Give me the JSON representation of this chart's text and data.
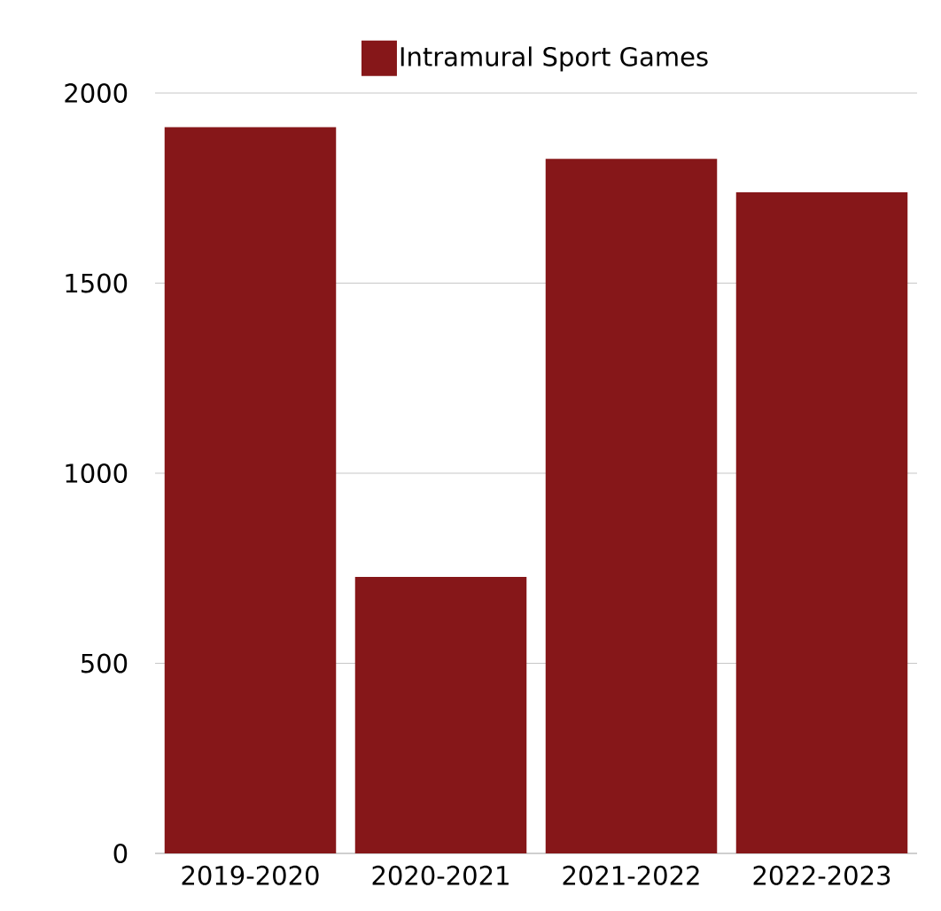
{
  "chart_data": {
    "type": "bar",
    "categories": [
      "2019-2020",
      "2020-2021",
      "2021-2022",
      "2022-2023"
    ],
    "series": [
      {
        "name": "Intramural Sport Games",
        "color": "#861719",
        "values": [
          1910,
          727,
          1827,
          1739
        ]
      }
    ],
    "ylim": [
      0,
      2000
    ],
    "yticks": [
      0,
      500,
      1000,
      1500,
      2000
    ],
    "grid": "y",
    "legend": "top"
  }
}
